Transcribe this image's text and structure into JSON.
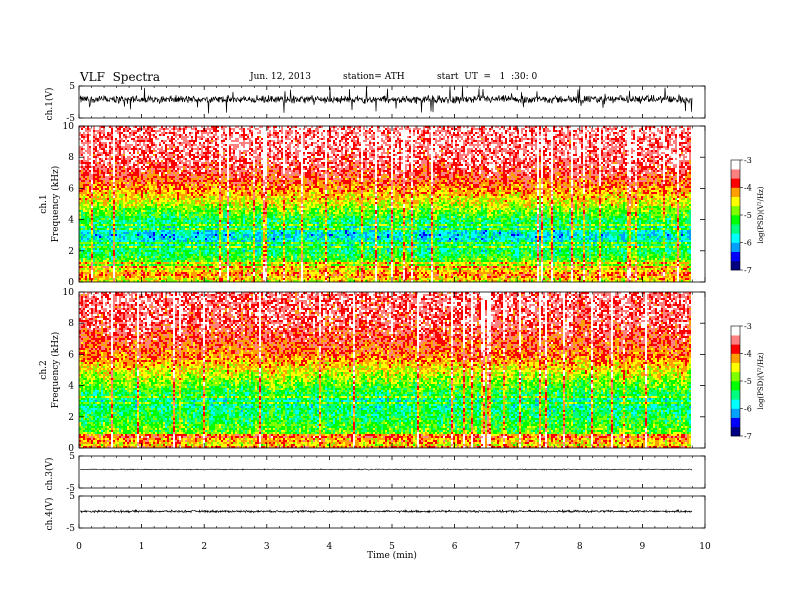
{
  "header": {
    "title": "VLF  Spectra",
    "date": "Jun. 12, 2013",
    "station": "station= ATH",
    "start": "start  UT  =   1  :30: 0"
  },
  "colors": {
    "spectrum_scale": [
      "#000080",
      "#0000ff",
      "#00a0ff",
      "#00ffff",
      "#00ff80",
      "#00ff00",
      "#80ff00",
      "#ffff00",
      "#ffa000",
      "#ff0000",
      "#ff8080",
      "#ffffff"
    ],
    "trace": "#000000"
  },
  "chart_data": [
    {
      "type": "line",
      "name": "ch1-waveform",
      "ylabel": "ch.1(V)",
      "ylim": [
        -5,
        5
      ],
      "y_ticks": [
        "5",
        "-5"
      ],
      "xlim": [
        0,
        10
      ],
      "signal": {
        "level_V": 0.8,
        "noise_amplitude_V": 1.5,
        "spike_amplitude_V": 4.5
      }
    },
    {
      "type": "heatmap",
      "name": "ch1-spectrogram",
      "ylabel_channel": "ch.1",
      "ylabel": "Frequency (kHz)",
      "ylim": [
        0,
        10
      ],
      "y_ticks": [
        "0",
        "2",
        "4",
        "6",
        "8",
        "10"
      ],
      "xlim": [
        0,
        10
      ],
      "data_end_min": 9.8,
      "colorbar": {
        "label": "log(PSD)(V²/Hz)",
        "range": [
          -7,
          -3
        ],
        "ticks": [
          "-3",
          "-4",
          "-5",
          "-6",
          "-7"
        ]
      },
      "profile_kHz_to_logPSD": [
        [
          0,
          -4.6
        ],
        [
          0.5,
          -4.0
        ],
        [
          1,
          -4.8
        ],
        [
          2,
          -5.4
        ],
        [
          3,
          -5.9
        ],
        [
          4,
          -5.3
        ],
        [
          5,
          -4.6
        ],
        [
          6,
          -4.1
        ],
        [
          7,
          -3.7
        ],
        [
          8,
          -3.5
        ],
        [
          10,
          -3.4
        ]
      ]
    },
    {
      "type": "heatmap",
      "name": "ch2-spectrogram",
      "ylabel_channel": "ch.2",
      "ylabel": "Frequency (kHz)",
      "ylim": [
        0,
        10
      ],
      "y_ticks": [
        "0",
        "2",
        "4",
        "6",
        "8",
        "10"
      ],
      "xlim": [
        0,
        10
      ],
      "data_end_min": 9.8,
      "colorbar": {
        "label": "log(PSD)(V²/Hz)",
        "range": [
          -7,
          -3
        ],
        "ticks": [
          "-3",
          "-4",
          "-5",
          "-6",
          "-7"
        ]
      },
      "profile_kHz_to_logPSD": [
        [
          0,
          -4.7
        ],
        [
          0.5,
          -4.1
        ],
        [
          1,
          -5.0
        ],
        [
          2,
          -5.3
        ],
        [
          3,
          -5.6
        ],
        [
          4,
          -5.0
        ],
        [
          5,
          -4.5
        ],
        [
          6,
          -4.0
        ],
        [
          7,
          -3.8
        ],
        [
          8,
          -3.6
        ],
        [
          10,
          -3.5
        ]
      ]
    },
    {
      "type": "line",
      "name": "ch3-waveform",
      "ylabel": "ch.3(V)",
      "ylim": [
        -5,
        5
      ],
      "y_ticks": [
        "5",
        "-5"
      ],
      "xlim": [
        0,
        10
      ],
      "signal": {
        "level_V": 0.8,
        "noise_amplitude_V": 0.2,
        "spike_amplitude_V": 0
      }
    },
    {
      "type": "line",
      "name": "ch4-waveform",
      "ylabel": "ch.4(V)",
      "ylim": [
        -5,
        5
      ],
      "y_ticks": [
        "5",
        "-5"
      ],
      "xlim": [
        0,
        10
      ],
      "signal": {
        "level_V": 0.2,
        "noise_amplitude_V": 0.4,
        "spike_amplitude_V": 0
      }
    }
  ],
  "x_axis": {
    "label": "Time (min)",
    "range": [
      0,
      10
    ],
    "ticks": [
      "0",
      "1",
      "2",
      "3",
      "4",
      "5",
      "6",
      "7",
      "8",
      "9",
      "10"
    ]
  }
}
